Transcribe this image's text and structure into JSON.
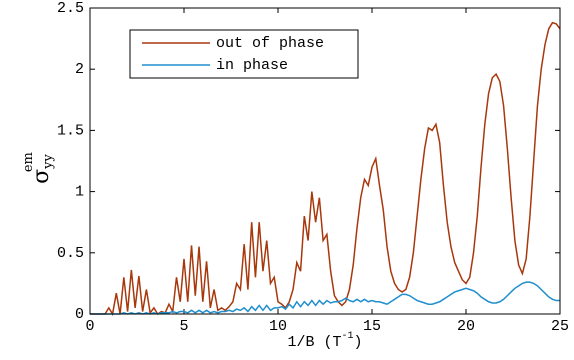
{
  "chart_data": {
    "type": "line",
    "xlabel": {
      "main": "1/B  (T",
      "sup": "-1",
      "close": ")"
    },
    "ylabel": {
      "symbol": "σ",
      "sub": "yy",
      "sup": "em"
    },
    "x": [
      0,
      0.2,
      0.4,
      0.6,
      0.8,
      1,
      1.2,
      1.4,
      1.6,
      1.8,
      2,
      2.2,
      2.4,
      2.6,
      2.8,
      3,
      3.2,
      3.4,
      3.6,
      3.8,
      4,
      4.2,
      4.4,
      4.6,
      4.8,
      5,
      5.2,
      5.4,
      5.6,
      5.8,
      6,
      6.2,
      6.4,
      6.6,
      6.8,
      7,
      7.2,
      7.4,
      7.6,
      7.8,
      8,
      8.2,
      8.4,
      8.6,
      8.8,
      9,
      9.2,
      9.4,
      9.6,
      9.8,
      10,
      10.2,
      10.4,
      10.6,
      10.8,
      11,
      11.2,
      11.4,
      11.6,
      11.8,
      12,
      12.2,
      12.4,
      12.6,
      12.8,
      13,
      13.2,
      13.4,
      13.6,
      13.8,
      14,
      14.2,
      14.4,
      14.6,
      14.8,
      15,
      15.2,
      15.4,
      15.6,
      15.8,
      16,
      16.2,
      16.4,
      16.6,
      16.8,
      17,
      17.2,
      17.4,
      17.6,
      17.8,
      18,
      18.2,
      18.4,
      18.6,
      18.8,
      19,
      19.2,
      19.4,
      19.6,
      19.8,
      20,
      20.2,
      20.4,
      20.6,
      20.8,
      21,
      21.2,
      21.4,
      21.6,
      21.8,
      22,
      22.2,
      22.4,
      22.6,
      22.8,
      23,
      23.2,
      23.4,
      23.6,
      23.8,
      24,
      24.2,
      24.4,
      24.6,
      24.8,
      25
    ],
    "series": [
      {
        "name": "out of phase",
        "color": "#a8380c",
        "values": [
          0,
          0,
          0,
          0,
          0,
          0.05,
          0,
          0.17,
          0,
          0.3,
          0.02,
          0.36,
          0.05,
          0.31,
          0.02,
          0.2,
          0.01,
          0.05,
          0,
          0.02,
          0.01,
          0.08,
          0.02,
          0.3,
          0.1,
          0.45,
          0.1,
          0.56,
          0.15,
          0.55,
          0.1,
          0.43,
          0.05,
          0.2,
          0.03,
          0.05,
          0.03,
          0.06,
          0.1,
          0.25,
          0.2,
          0.57,
          0.2,
          0.75,
          0.3,
          0.75,
          0.35,
          0.6,
          0.25,
          0.3,
          0.1,
          0.08,
          0.05,
          0.1,
          0.2,
          0.42,
          0.35,
          0.8,
          0.6,
          1.0,
          0.75,
          0.95,
          0.6,
          0.65,
          0.35,
          0.15,
          0.1,
          0.07,
          0.1,
          0.2,
          0.4,
          0.7,
          0.95,
          1.1,
          1.05,
          1.2,
          1.27,
          1.05,
          0.85,
          0.55,
          0.35,
          0.25,
          0.2,
          0.18,
          0.2,
          0.3,
          0.5,
          0.8,
          1.1,
          1.35,
          1.52,
          1.5,
          1.55,
          1.4,
          1.05,
          0.75,
          0.55,
          0.42,
          0.35,
          0.28,
          0.25,
          0.3,
          0.5,
          0.8,
          1.2,
          1.55,
          1.8,
          1.93,
          1.96,
          1.9,
          1.7,
          1.35,
          0.95,
          0.6,
          0.4,
          0.33,
          0.45,
          0.8,
          1.25,
          1.7,
          2.0,
          2.2,
          2.33,
          2.38,
          2.37,
          2.33
        ]
      },
      {
        "name": "in phase",
        "color": "#1f8fce",
        "values": [
          0,
          0,
          0,
          0,
          0,
          0,
          0,
          0,
          0,
          0.01,
          0,
          0.01,
          0,
          0.01,
          0,
          0.01,
          0,
          0.01,
          0,
          0.01,
          0.01,
          0.01,
          0.02,
          0.01,
          0.02,
          0.02,
          0.01,
          0.03,
          0.01,
          0.03,
          0.01,
          0.03,
          0.01,
          0.02,
          0.01,
          0.02,
          0.02,
          0.03,
          0.02,
          0.04,
          0.03,
          0.05,
          0.02,
          0.06,
          0.03,
          0.07,
          0.03,
          0.07,
          0.03,
          0.05,
          0.05,
          0.06,
          0.04,
          0.08,
          0.05,
          0.1,
          0.06,
          0.1,
          0.07,
          0.11,
          0.07,
          0.11,
          0.08,
          0.11,
          0.09,
          0.1,
          0.1,
          0.11,
          0.13,
          0.11,
          0.1,
          0.12,
          0.1,
          0.12,
          0.1,
          0.11,
          0.1,
          0.1,
          0.09,
          0.08,
          0.1,
          0.12,
          0.14,
          0.16,
          0.16,
          0.15,
          0.13,
          0.11,
          0.1,
          0.09,
          0.08,
          0.08,
          0.09,
          0.1,
          0.12,
          0.14,
          0.16,
          0.18,
          0.19,
          0.2,
          0.21,
          0.2,
          0.19,
          0.17,
          0.14,
          0.12,
          0.1,
          0.09,
          0.09,
          0.1,
          0.12,
          0.15,
          0.18,
          0.21,
          0.23,
          0.25,
          0.26,
          0.26,
          0.25,
          0.23,
          0.2,
          0.17,
          0.14,
          0.12,
          0.11,
          0.11
        ]
      }
    ],
    "xlim": [
      0,
      25
    ],
    "xticks": [
      0,
      5,
      10,
      15,
      20,
      25
    ],
    "ylim": [
      0,
      2.5
    ],
    "yticks": [
      0,
      0.5,
      1,
      1.5,
      2,
      2.5
    ],
    "legend": "upper left"
  }
}
